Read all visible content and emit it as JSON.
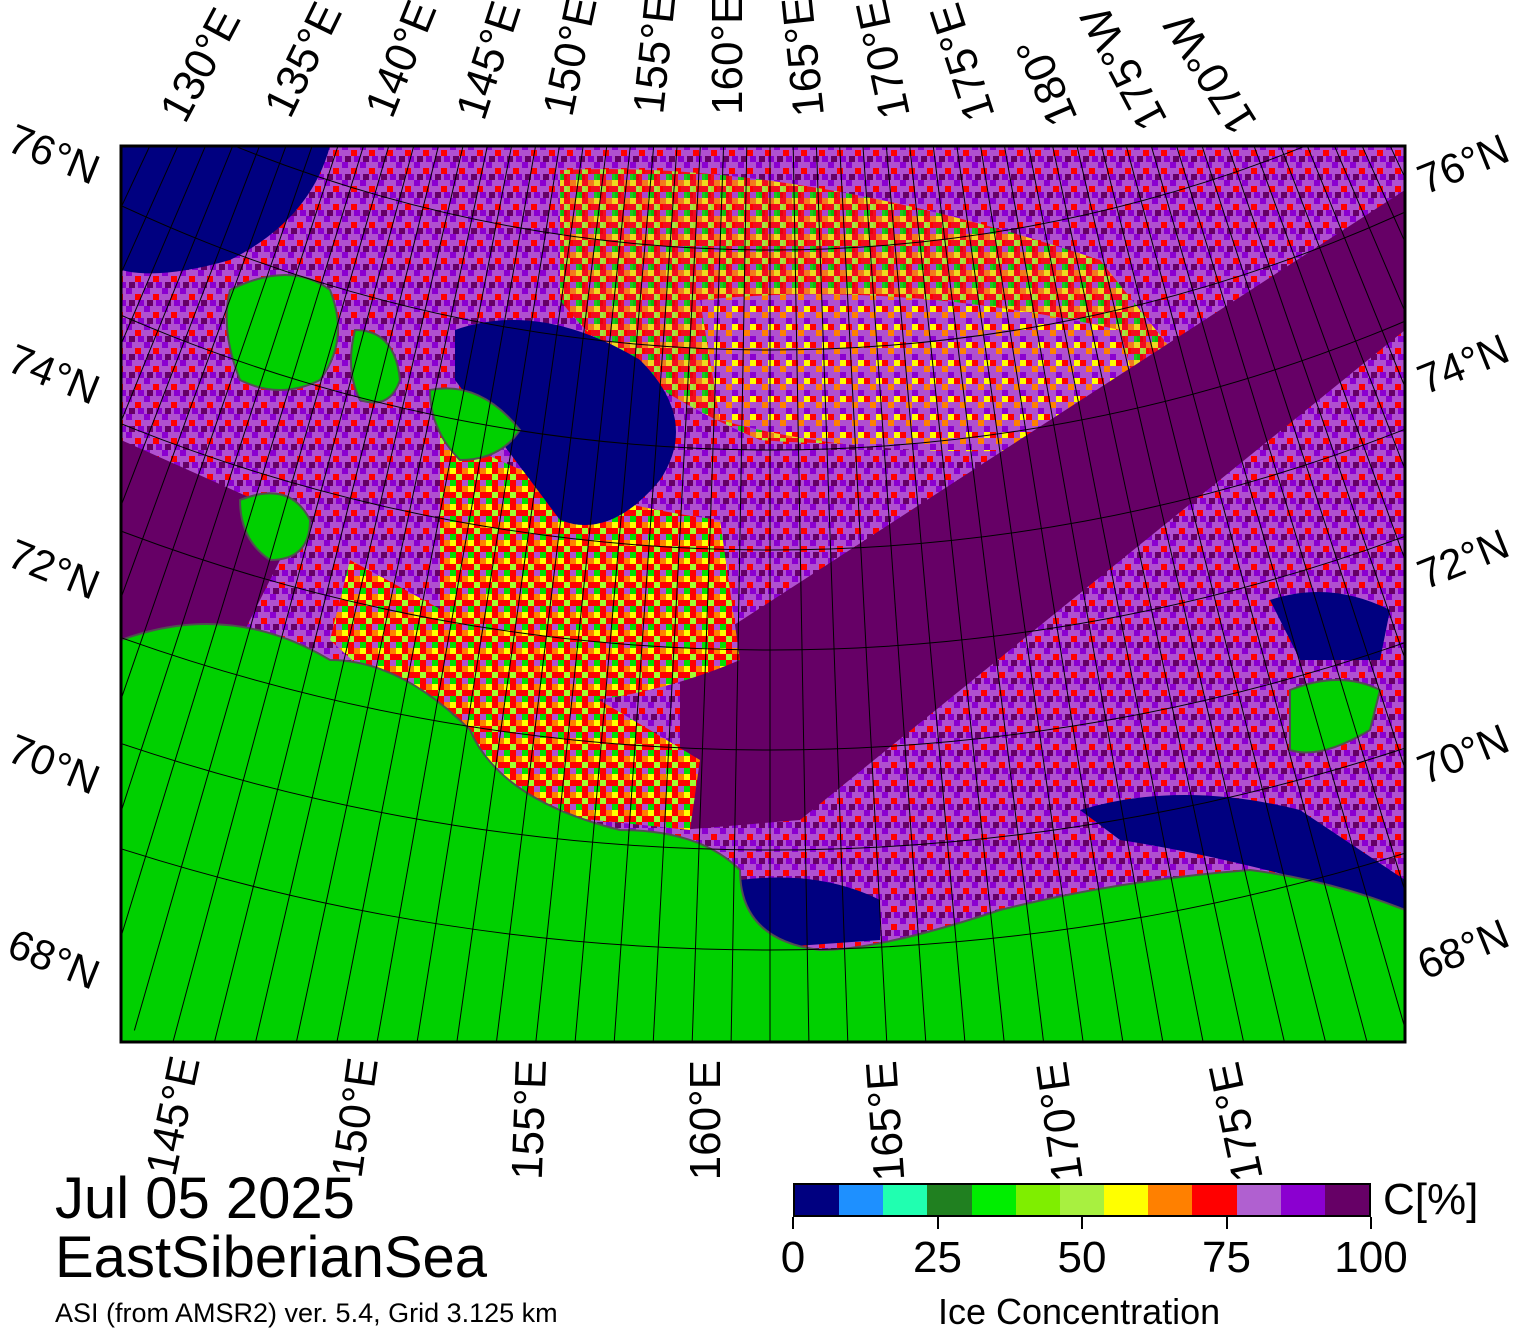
{
  "map": {
    "top_lon_labels": [
      "130°E",
      "135°E",
      "140°E",
      "145°E",
      "150°E",
      "155°E",
      "160°E",
      "165°E",
      "170°E",
      "175°E",
      "180°",
      "175°W",
      "170°W"
    ],
    "bottom_lon_labels": [
      "145°E",
      "150°E",
      "155°E",
      "160°E",
      "165°E",
      "170°E",
      "175°E"
    ],
    "lat_labels": [
      "76°N",
      "74°N",
      "72°N",
      "70°N",
      "68°N"
    ],
    "colors": {
      "water_open": "#000080",
      "land": "#00d000",
      "ice_high": "#660066",
      "ice_mid": "#8b00d0",
      "ice_light": "#b24fd0",
      "red": "#ff0000",
      "orange": "#ff8000",
      "yellow": "#ffff00",
      "lime": "#a0ff30",
      "land_outline": "#505050"
    }
  },
  "title": {
    "date": "Jul 05 2025",
    "region": "EastSiberianSea",
    "source": "ASI (from AMSR2) ver. 5.4,  Grid 3.125 km"
  },
  "colorbar": {
    "unit": "C[%]",
    "title": "Ice Concentration",
    "ticks": [
      "0",
      "25",
      "50",
      "75",
      "100"
    ],
    "swatches": [
      "#000080",
      "#1e90ff",
      "#20ffb0",
      "#208020",
      "#00ee00",
      "#7fee00",
      "#a8f040",
      "#ffff00",
      "#ff8000",
      "#ff0000",
      "#b060d0",
      "#8b00d0",
      "#660066"
    ]
  }
}
